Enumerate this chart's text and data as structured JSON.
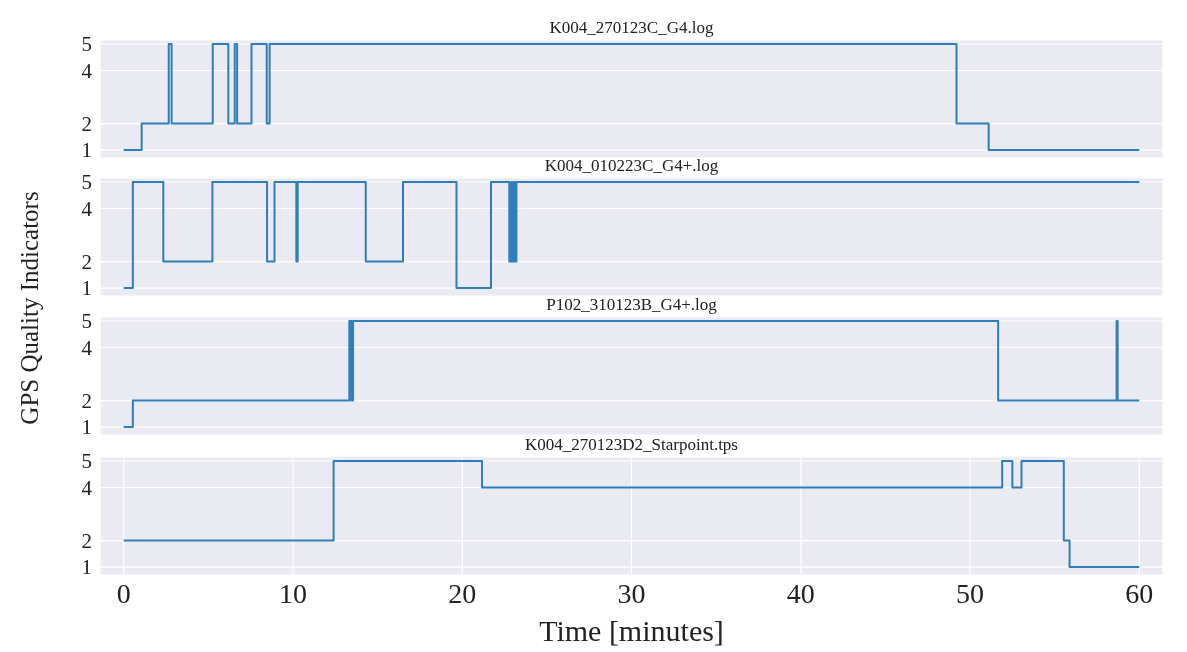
{
  "chart_data": [
    {
      "type": "step",
      "title": "K004_270123C_G4.log",
      "color": "#2f7ebc",
      "x": [
        0,
        1.06,
        2.66,
        2.83,
        5.26,
        6.18,
        6.56,
        6.7,
        7.55,
        8.45,
        8.62,
        49.2,
        51.1,
        60
      ],
      "values": [
        1,
        2,
        5,
        2,
        5,
        2,
        5,
        2,
        5,
        2,
        5,
        2,
        1,
        1
      ],
      "xlim": [
        -1.4,
        61.4
      ],
      "ylim": [
        0.7,
        5.15
      ],
      "xticks": [
        0,
        10,
        20,
        30,
        40,
        50,
        60
      ],
      "yticks": [
        1,
        2,
        4,
        5
      ],
      "grid": true,
      "tick_labels": "y"
    },
    {
      "type": "step",
      "title": "K004_010223C_G4+.log",
      "ylabel": "GPS Quality Indicators",
      "color": "#2f7ebc",
      "x": [
        0,
        0.54,
        2.34,
        5.24,
        8.47,
        8.91,
        10.2,
        10.28,
        14.3,
        16.5,
        19.66,
        21.7,
        22.78,
        22.9,
        22.95,
        23.05,
        23.1,
        23.2,
        60
      ],
      "values": [
        1,
        5,
        2,
        5,
        2,
        5,
        2,
        5,
        2,
        5,
        1,
        5,
        2,
        5,
        2,
        5,
        2,
        5,
        5
      ],
      "xlim": [
        -1.4,
        61.4
      ],
      "ylim": [
        0.7,
        5.15
      ],
      "xticks": [
        0,
        10,
        20,
        30,
        40,
        50,
        60
      ],
      "yticks": [
        1,
        2,
        4,
        5
      ],
      "grid": true,
      "tick_labels": "y"
    },
    {
      "type": "step",
      "title": "P102_310123B_G4+.log",
      "color": "#2f7ebc",
      "x": [
        0,
        0.54,
        13.33,
        13.45,
        13.55,
        51.66,
        58.66,
        58.72,
        60
      ],
      "values": [
        1,
        2,
        5,
        2,
        5,
        2,
        5,
        2,
        2
      ],
      "xlim": [
        -1.4,
        61.4
      ],
      "ylim": [
        0.7,
        5.15
      ],
      "xticks": [
        0,
        10,
        20,
        30,
        40,
        50,
        60
      ],
      "yticks": [
        1,
        2,
        4,
        5
      ],
      "grid": true,
      "tick_labels": "y"
    },
    {
      "type": "step",
      "title": "K004_270123D2_Starpoint.tps",
      "xlabel": "Time [minutes]",
      "color": "#2f7ebc",
      "x": [
        0,
        12.4,
        21.17,
        51.9,
        52.5,
        53.04,
        55.54,
        55.88,
        60
      ],
      "values": [
        2,
        5,
        4,
        5,
        4,
        5,
        2,
        1,
        1
      ],
      "xlim": [
        -1.4,
        61.4
      ],
      "ylim": [
        0.7,
        5.15
      ],
      "xticks": [
        0,
        10,
        20,
        30,
        40,
        50,
        60
      ],
      "yticks": [
        1,
        2,
        4,
        5
      ],
      "grid": true
    }
  ]
}
